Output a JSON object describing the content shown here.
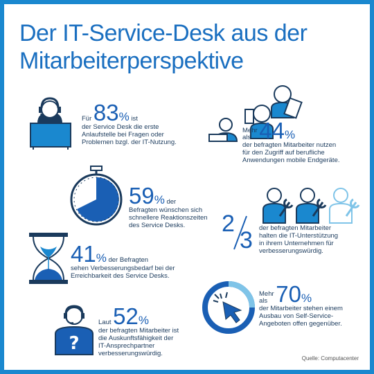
{
  "title": {
    "line1": "Der IT-Service-Desk aus der",
    "line2": "Mitarbeiterperspektive"
  },
  "stats": {
    "s83": {
      "pre": "Für",
      "value": "83",
      "pct": "%",
      "post": "ist",
      "lines": [
        "der Service Desk die erste",
        "Anlaufstelle bei Fragen oder",
        "Problemen bzgl. der IT-Nutzung."
      ]
    },
    "s44": {
      "pre1": "Mehr",
      "pre2": "als",
      "value": "44",
      "pct": "%",
      "lines": [
        "der befragten Mitarbeiter nutzen",
        "für den Zugriff auf berufliche",
        "Anwendungen mobile Endgeräte."
      ]
    },
    "s59": {
      "value": "59",
      "pct": "%",
      "post": "der",
      "lines": [
        "Befragten wünschen sich",
        "schnellere Reaktionszeiten",
        "des Service Desks."
      ]
    },
    "s23": {
      "num": "2",
      "den": "3",
      "lines": [
        "der befragten Mitarbeiter",
        "halten die IT-Unterstützung",
        "in ihrem Unternehmen für",
        "verbesserungswürdig."
      ]
    },
    "s41": {
      "value": "41",
      "pct": "%",
      "post": "der Befragten",
      "lines": [
        "sehen Verbesserungsbedarf bei der",
        "Erreichbarkeit des Service Desks."
      ]
    },
    "s70": {
      "pre1": "Mehr",
      "pre2": "als",
      "value": "70",
      "pct": "%",
      "lines": [
        "der Mitarbeiter stehen einem",
        "Ausbau von Self-Service-",
        "Angeboten offen gegenüber."
      ]
    },
    "s52": {
      "pre": "Laut",
      "value": "52",
      "pct": "%",
      "lines": [
        "der befragten Mitarbeiter ist",
        "die Auskunftsfähigkeit der",
        "IT-Ansprechpartner",
        "verbesserungswürdig."
      ]
    }
  },
  "source": "Quelle: Computacenter",
  "colors": {
    "accent": "#1a88cf",
    "dark": "#1a5fb4",
    "light": "#7fc4e8"
  },
  "icons": [
    "headset-agent-icon",
    "mobile-users-icon",
    "stopwatch-icon",
    "wrench-users-icon",
    "hourglass-icon",
    "click-cursor-icon",
    "question-person-icon"
  ]
}
